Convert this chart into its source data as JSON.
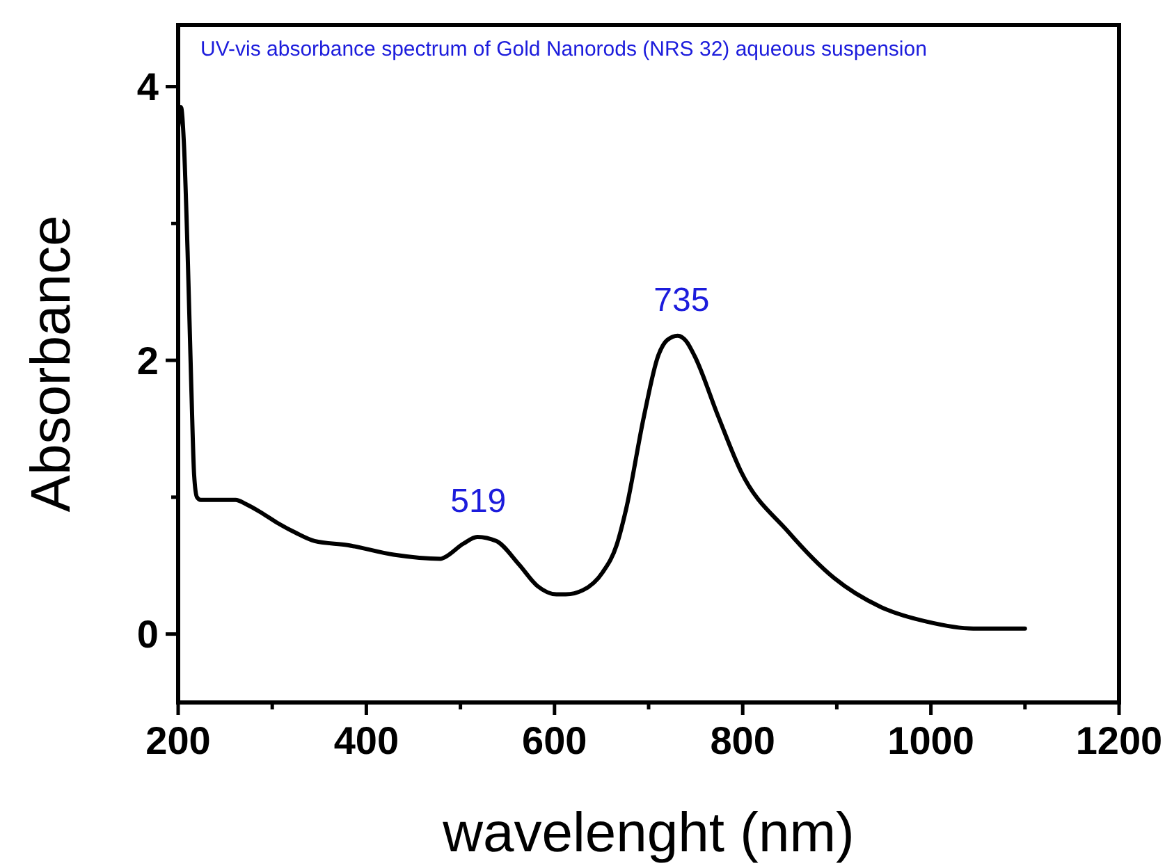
{
  "chart_data": {
    "type": "line",
    "title": "UV-vis absorbance spectrum of Gold Nanorods (NRS 32) aqueous suspension",
    "xlabel": "wavelenght (nm)",
    "ylabel": "Absorbance",
    "xlim": [
      200,
      1200
    ],
    "ylim": [
      -0.5,
      4.45
    ],
    "xticks": [
      200,
      {
        "value": 300,
        "label": null
      },
      400,
      {
        "value": 500,
        "label": null
      },
      600,
      {
        "value": 700,
        "label": null
      },
      800,
      {
        "value": 900,
        "label": null
      },
      1000,
      {
        "value": 1100,
        "label": null
      },
      1200
    ],
    "yticks": [
      0,
      {
        "value": 1,
        "label": null
      },
      2,
      {
        "value": 3,
        "label": null
      },
      4
    ],
    "marker": "none",
    "line_style": "solid",
    "annotations": [
      {
        "text": "519",
        "x": 519,
        "y": 0.71
      },
      {
        "text": "735",
        "x": 735,
        "y": 2.18
      }
    ],
    "series": [
      {
        "color": "#000000",
        "x": [
          200,
          203,
          206,
          210,
          214,
          217,
          220,
          224,
          240,
          261,
          272,
          290,
          306,
          325,
          345,
          380,
          429,
          479,
          483,
          503,
          518,
          538,
          562,
          582,
          602,
          612,
          630,
          651,
          666,
          676,
          695,
          710,
          720,
          731,
          740,
          749,
          774,
          798,
          848,
          897,
          946,
          996,
          1045,
          1094,
          1100
        ],
        "values": [
          3.7,
          3.85,
          3.6,
          2.8,
          1.8,
          1.16,
          1.0,
          0.98,
          0.98,
          0.98,
          0.95,
          0.88,
          0.81,
          0.74,
          0.68,
          0.65,
          0.58,
          0.55,
          0.56,
          0.66,
          0.71,
          0.68,
          0.51,
          0.35,
          0.29,
          0.29,
          0.32,
          0.45,
          0.65,
          0.91,
          1.59,
          2.03,
          2.15,
          2.18,
          2.14,
          2.03,
          1.59,
          1.19,
          0.75,
          0.41,
          0.2,
          0.09,
          0.04,
          0.04,
          0.04
        ]
      }
    ]
  }
}
